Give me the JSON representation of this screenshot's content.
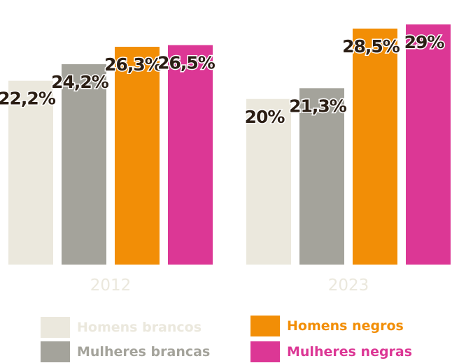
{
  "chart_data": {
    "type": "bar",
    "categories": [
      "2012",
      "2023"
    ],
    "series": [
      {
        "name": "Homens brancos",
        "color": "#ebe8dd",
        "values": [
          22.2,
          20
        ],
        "labels": [
          "22,2%",
          "20%"
        ]
      },
      {
        "name": "Mulheres brancas",
        "color": "#a4a39b",
        "values": [
          24.2,
          21.3
        ],
        "labels": [
          "24,2%",
          "21,3%"
        ]
      },
      {
        "name": "Homens negros",
        "color": "#f28e06",
        "values": [
          26.3,
          28.5
        ],
        "labels": [
          "26,3%",
          "28,5%"
        ]
      },
      {
        "name": "Mulheres negras",
        "color": "#dc3795",
        "values": [
          26.5,
          29
        ],
        "labels": [
          "26,5%",
          "29%"
        ]
      }
    ],
    "ylim": [
      0,
      29
    ],
    "legend_position": "bottom",
    "grid": false
  }
}
